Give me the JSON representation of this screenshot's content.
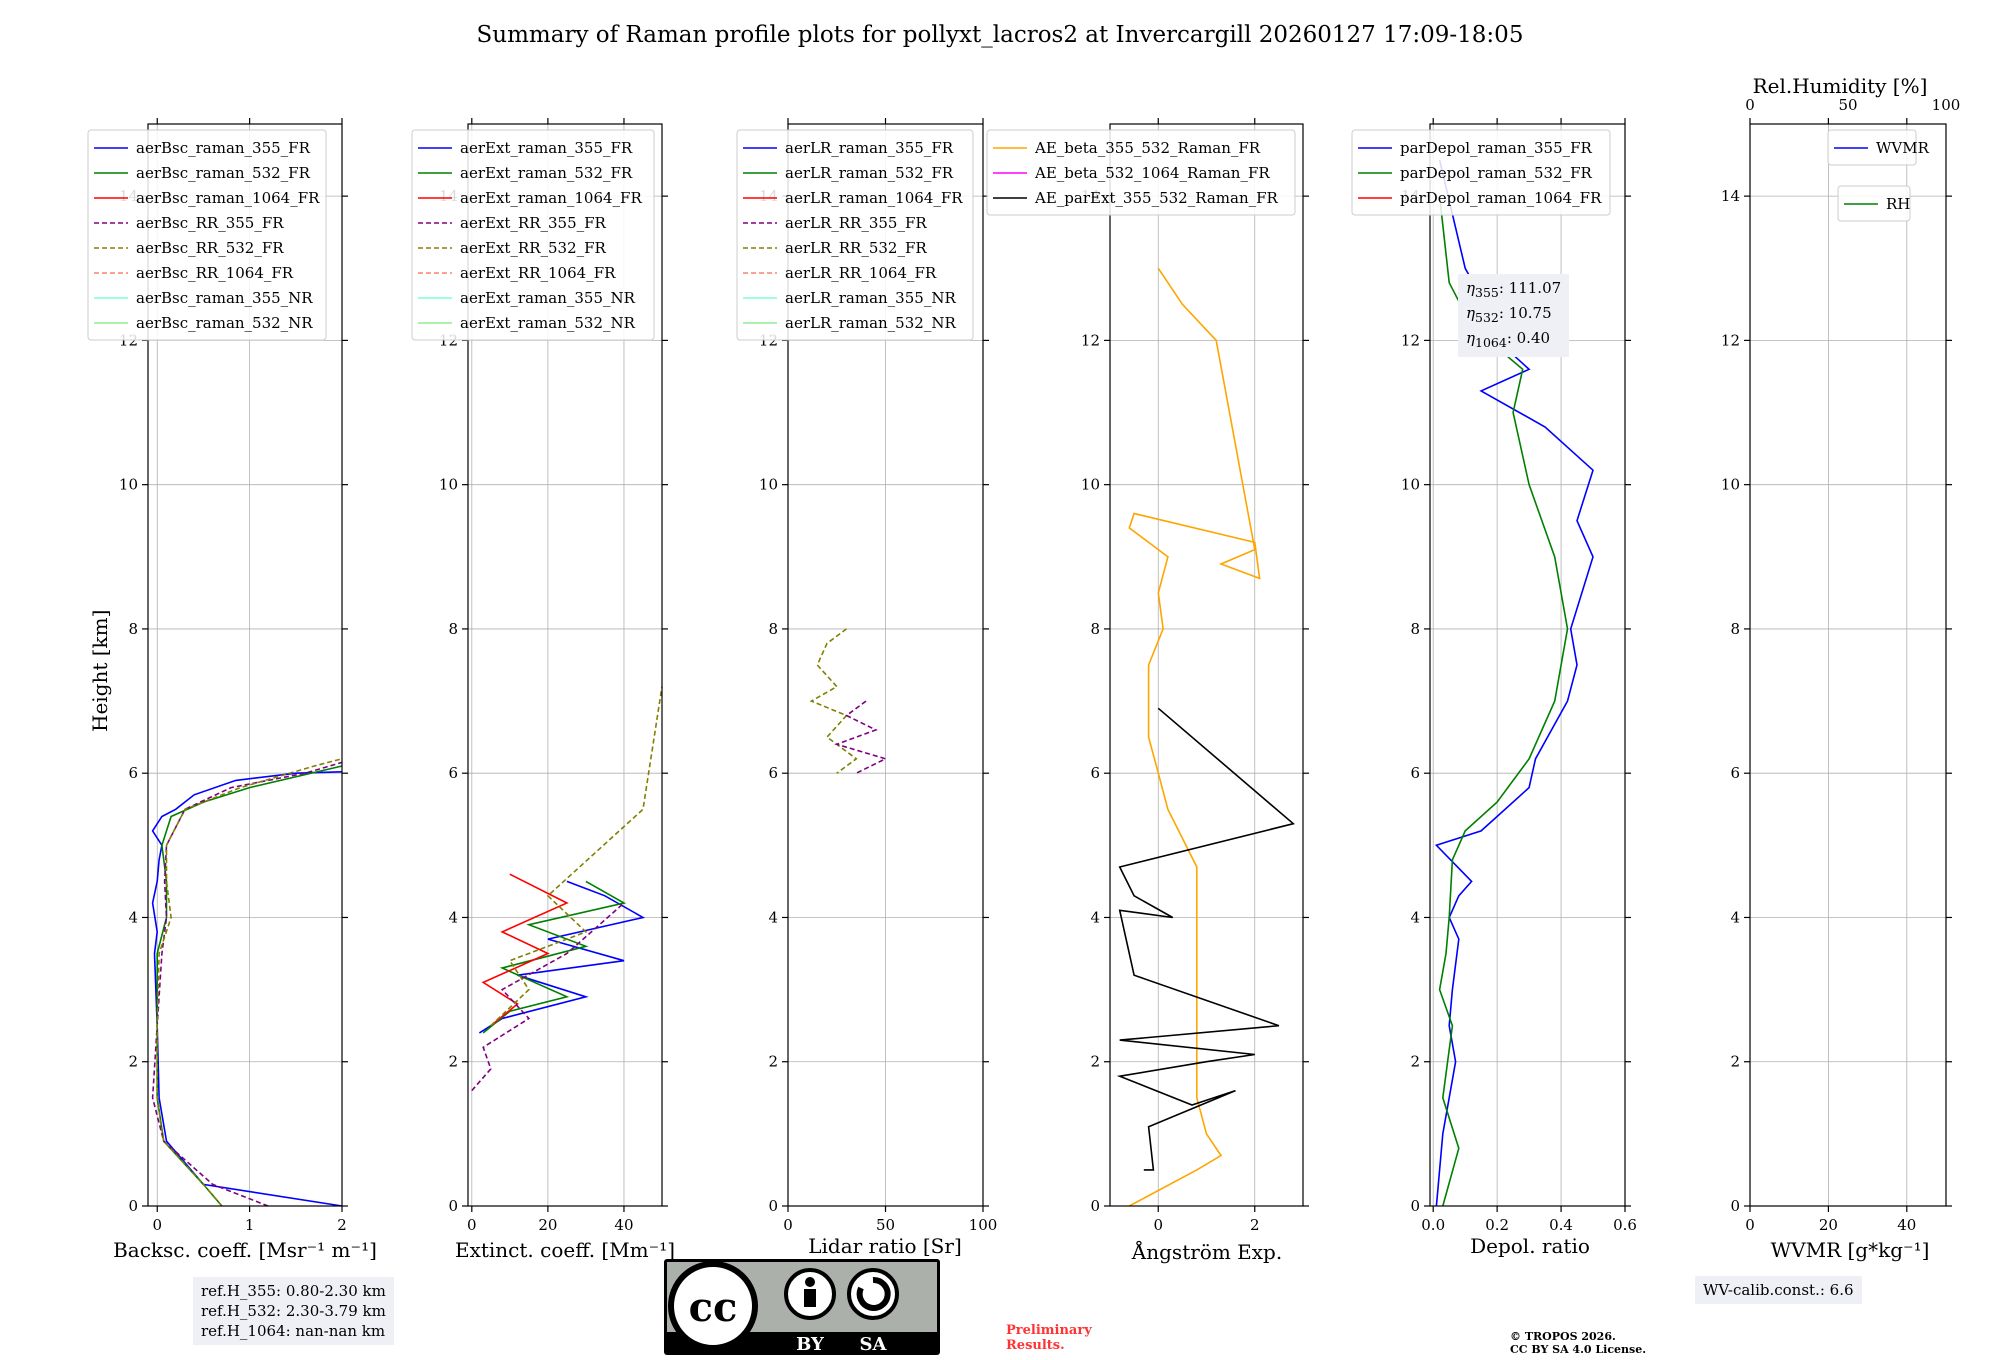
{
  "title": "Summary of Raman profile plots for pollyxt_lacros2 at Invercargill 20260127 17:09-18:05",
  "ylabel": "Height [km]",
  "yticks": [
    "0",
    "2",
    "4",
    "6",
    "8",
    "10",
    "12",
    "14"
  ],
  "ylim": [
    0,
    15
  ],
  "panels": [
    {
      "id": "bsc",
      "xlabel": "Backsc. coeff. [Msr⁻¹ m⁻¹]",
      "xlim": [
        -0.1,
        2
      ],
      "xticks": [
        0,
        1,
        2
      ],
      "xticklabels": [
        "0",
        "1",
        "2"
      ],
      "legend": [
        {
          "label": "aerBsc_raman_355_FR",
          "color": "#0000ff",
          "dash": false
        },
        {
          "label": "aerBsc_raman_532_FR",
          "color": "#008000",
          "dash": false
        },
        {
          "label": "aerBsc_raman_1064_FR",
          "color": "#ff0000",
          "dash": false
        },
        {
          "label": "aerBsc_RR_355_FR",
          "color": "#800080",
          "dash": true
        },
        {
          "label": "aerBsc_RR_532_FR",
          "color": "#808000",
          "dash": true
        },
        {
          "label": "aerBsc_RR_1064_FR",
          "color": "#fa8072",
          "dash": true
        },
        {
          "label": "aerBsc_raman_355_NR",
          "color": "#7fffd4",
          "dash": false
        },
        {
          "label": "aerBsc_raman_532_NR",
          "color": "#90ee90",
          "dash": false
        }
      ]
    },
    {
      "id": "ext",
      "xlabel": "Extinct. coeff. [Mm⁻¹]",
      "xlim": [
        -1,
        50
      ],
      "xticks": [
        0,
        20,
        40
      ],
      "xticklabels": [
        "0",
        "20",
        "40"
      ],
      "legend": [
        {
          "label": "aerExt_raman_355_FR",
          "color": "#0000ff",
          "dash": false
        },
        {
          "label": "aerExt_raman_532_FR",
          "color": "#008000",
          "dash": false
        },
        {
          "label": "aerExt_raman_1064_FR",
          "color": "#ff0000",
          "dash": false
        },
        {
          "label": "aerExt_RR_355_FR",
          "color": "#800080",
          "dash": true
        },
        {
          "label": "aerExt_RR_532_FR",
          "color": "#808000",
          "dash": true
        },
        {
          "label": "aerExt_RR_1064_FR",
          "color": "#fa8072",
          "dash": true
        },
        {
          "label": "aerExt_raman_355_NR",
          "color": "#7fffd4",
          "dash": false
        },
        {
          "label": "aerExt_raman_532_NR",
          "color": "#90ee90",
          "dash": false
        }
      ]
    },
    {
      "id": "lr",
      "xlabel": "Lidar ratio [Sr]",
      "xlim": [
        0,
        100
      ],
      "xticks": [
        0,
        50,
        100
      ],
      "xticklabels": [
        "0",
        "50",
        "100"
      ],
      "legend": [
        {
          "label": "aerLR_raman_355_FR",
          "color": "#0000ff",
          "dash": false
        },
        {
          "label": "aerLR_raman_532_FR",
          "color": "#008000",
          "dash": false
        },
        {
          "label": "aerLR_raman_1064_FR",
          "color": "#ff0000",
          "dash": false
        },
        {
          "label": "aerLR_RR_355_FR",
          "color": "#800080",
          "dash": true
        },
        {
          "label": "aerLR_RR_532_FR",
          "color": "#808000",
          "dash": true
        },
        {
          "label": "aerLR_RR_1064_FR",
          "color": "#fa8072",
          "dash": true
        },
        {
          "label": "aerLR_raman_355_NR",
          "color": "#7fffd4",
          "dash": false
        },
        {
          "label": "aerLR_raman_532_NR",
          "color": "#90ee90",
          "dash": false
        }
      ]
    },
    {
      "id": "ae",
      "xlabel": "Ångström Exp.",
      "xlim": [
        -1,
        3
      ],
      "xticks": [
        0,
        2
      ],
      "xticklabels": [
        "0",
        "2"
      ],
      "legend": [
        {
          "label": "AE_beta_355_532_Raman_FR",
          "color": "#ffa500",
          "dash": false
        },
        {
          "label": "AE_beta_532_1064_Raman_FR",
          "color": "#ff00ff",
          "dash": false
        },
        {
          "label": "AE_parExt_355_532_Raman_FR",
          "color": "#000000",
          "dash": false
        }
      ]
    },
    {
      "id": "depol",
      "xlabel": "Depol. ratio",
      "xlim": [
        -0.01,
        0.6
      ],
      "xticks": [
        0.0,
        0.2,
        0.4,
        0.6
      ],
      "xticklabels": [
        "0.0",
        "0.2",
        "0.4",
        "0.6"
      ],
      "legend": [
        {
          "label": "parDepol_raman_355_FR",
          "color": "#0000ff",
          "dash": false
        },
        {
          "label": "parDepol_raman_532_FR",
          "color": "#008000",
          "dash": false
        },
        {
          "label": "parDepol_raman_1064_FR",
          "color": "#ff0000",
          "dash": false
        }
      ]
    },
    {
      "id": "wv",
      "xlabel": "WVMR [g*kg⁻¹]",
      "xlim": [
        0,
        50
      ],
      "xticks": [
        0,
        20,
        40
      ],
      "xticklabels": [
        "0",
        "20",
        "40"
      ],
      "toplabel": "Rel.Humidity [%]",
      "toplim": [
        0,
        100
      ],
      "topticks": [
        0,
        50,
        100
      ],
      "topticklabels": [
        "0",
        "50",
        "100"
      ],
      "legend": [
        {
          "label": "WVMR",
          "color": "#0000ff",
          "dash": false
        }
      ],
      "legend2": [
        {
          "label": "RH",
          "color": "#008000",
          "dash": false
        }
      ]
    }
  ],
  "eta": {
    "l1": "355",
    "v1": ": 111.07",
    "l2": "532",
    "v2": ": 10.75",
    "l3": "1064",
    "v3": ": 0.40"
  },
  "refh": {
    "l1": "ref.H_355: 0.80-2.30 km",
    "l2": "ref.H_532: 2.30-3.79 km",
    "l3": "ref.H_1064: nan-nan km"
  },
  "wv_calib": "WV-calib.const.: 6.6",
  "preliminary": {
    "l1": "Preliminary",
    "l2": "Results."
  },
  "copyright": {
    "l1": "© TROPOS 2026.",
    "l2": "CC BY SA 4.0 License."
  },
  "license_badge": {
    "cc": "cc",
    "by": "BY",
    "sa": "SA"
  },
  "chart_data": [
    {
      "type": "line",
      "panel": "bsc",
      "title": "",
      "xlabel": "Backsc. coeff. [Msr⁻¹ m⁻¹]",
      "ylabel": "Height [km]",
      "xlim": [
        -0.1,
        2
      ],
      "ylim": [
        0,
        15
      ],
      "series": [
        {
          "name": "aerBsc_raman_355_FR",
          "x": [
            2.0,
            0.5,
            0.1,
            0.02,
            0.0,
            -0.03,
            0.0,
            -0.05,
            0.0,
            0.02,
            0.05,
            -0.05,
            0.05,
            0.2,
            0.4,
            0.85,
            1.5,
            2.0
          ],
          "y": [
            0,
            0.3,
            0.9,
            1.5,
            2.5,
            3.5,
            3.8,
            4.2,
            4.5,
            4.8,
            5.0,
            5.2,
            5.4,
            5.5,
            5.7,
            5.9,
            6.0,
            6.02
          ]
        },
        {
          "name": "aerBsc_raman_532_FR",
          "x": [
            0.7,
            0.5,
            0.07,
            0.0,
            0.0,
            0.0,
            0.1,
            0.1,
            0.05,
            0.15,
            0.5,
            1.0,
            2.0
          ],
          "y": [
            0,
            0.3,
            0.9,
            1.5,
            2.5,
            3.5,
            4.0,
            4.5,
            5.0,
            5.4,
            5.6,
            5.8,
            6.1
          ]
        },
        {
          "name": "aerBsc_RR_355_FR",
          "x": [
            1.2,
            0.6,
            0.07,
            -0.05,
            0.0,
            0.05,
            0.1,
            0.08,
            0.1,
            0.3,
            0.8,
            1.6,
            2.0
          ],
          "y": [
            0,
            0.3,
            0.9,
            1.5,
            2.5,
            3.5,
            4.0,
            4.5,
            5.0,
            5.5,
            5.8,
            6.0,
            6.15
          ]
        },
        {
          "name": "aerBsc_RR_532_FR",
          "x": [
            0.7,
            0.5,
            0.07,
            0.0,
            0.0,
            0.02,
            0.15,
            0.1,
            0.1,
            0.3,
            0.9,
            1.7,
            2.0
          ],
          "y": [
            0,
            0.3,
            0.9,
            1.5,
            2.5,
            3.5,
            4.0,
            4.5,
            5.0,
            5.5,
            5.8,
            6.1,
            6.2
          ]
        }
      ]
    },
    {
      "type": "line",
      "panel": "ext",
      "title": "",
      "xlabel": "Extinct. coeff. [Mm⁻¹]",
      "ylabel": "Height [km]",
      "xlim": [
        -1,
        50
      ],
      "ylim": [
        0,
        15
      ],
      "series": [
        {
          "name": "aerExt_raman_355_FR",
          "x": [
            2,
            8,
            30,
            12,
            40,
            20,
            45,
            35,
            25
          ],
          "y": [
            2.4,
            2.6,
            2.9,
            3.2,
            3.4,
            3.7,
            4.0,
            4.3,
            4.5
          ]
        },
        {
          "name": "aerExt_raman_532_FR",
          "x": [
            3,
            10,
            25,
            8,
            30,
            15,
            40,
            30
          ],
          "y": [
            2.4,
            2.7,
            2.9,
            3.3,
            3.6,
            3.9,
            4.2,
            4.5
          ]
        },
        {
          "name": "aerExt_raman_1064_FR",
          "x": [
            5,
            12,
            3,
            20,
            8,
            25,
            10
          ],
          "y": [
            2.5,
            2.8,
            3.1,
            3.5,
            3.8,
            4.2,
            4.6
          ]
        },
        {
          "name": "aerExt_RR_355_FR",
          "x": [
            0,
            5,
            3,
            15,
            8,
            25,
            40
          ],
          "y": [
            1.6,
            1.9,
            2.2,
            2.6,
            3.0,
            3.5,
            4.2
          ]
        },
        {
          "name": "aerExt_RR_532_FR",
          "x": [
            5,
            15,
            10,
            30,
            20,
            45,
            50
          ],
          "y": [
            2.5,
            3.0,
            3.4,
            3.8,
            4.3,
            5.5,
            7.2
          ]
        }
      ]
    },
    {
      "type": "line",
      "panel": "lr",
      "title": "",
      "xlabel": "Lidar ratio [Sr]",
      "ylabel": "Height [km]",
      "xlim": [
        0,
        100
      ],
      "ylim": [
        0,
        15
      ],
      "series": [
        {
          "name": "aerLR_RR_532_FR",
          "x": [
            30,
            20,
            15,
            25,
            12,
            30,
            20,
            35,
            25
          ],
          "y": [
            8.0,
            7.8,
            7.5,
            7.2,
            7.0,
            6.8,
            6.5,
            6.2,
            6.0
          ]
        },
        {
          "name": "aerLR_RR_355_FR",
          "x": [
            40,
            30,
            45,
            25,
            50,
            35
          ],
          "y": [
            7.0,
            6.8,
            6.6,
            6.4,
            6.2,
            6.0
          ]
        }
      ]
    },
    {
      "type": "line",
      "panel": "ae",
      "title": "",
      "xlabel": "Ångström Exp.",
      "ylabel": "Height [km]",
      "xlim": [
        -1,
        3
      ],
      "ylim": [
        0,
        15
      ],
      "series": [
        {
          "name": "AE_beta_355_532_Raman_FR",
          "x": [
            -0.6,
            0.8,
            1.3,
            1.0,
            0.8,
            0.8,
            0.2,
            0.0,
            -0.2,
            -0.2,
            0.1,
            0.0,
            0.2,
            -0.6,
            -0.5,
            2.0,
            2.1,
            1.3,
            2.0,
            1.2,
            0.5,
            0.0
          ],
          "y": [
            0,
            0.5,
            0.7,
            1.0,
            1.5,
            4.7,
            5.5,
            6.0,
            6.5,
            7.5,
            8.0,
            8.5,
            9.0,
            9.4,
            9.6,
            9.2,
            8.7,
            8.9,
            9.1,
            12.0,
            12.5,
            13.0
          ]
        },
        {
          "name": "AE_parExt_355_532_Raman_FR",
          "x": [
            -0.3,
            -0.1,
            -0.2,
            1.6,
            0.7,
            -0.8,
            1.0,
            2.0,
            -0.8,
            2.5,
            -0.5,
            -0.8,
            0.3,
            -0.5,
            -0.8,
            2.8,
            0.0
          ],
          "y": [
            0.5,
            0.5,
            1.1,
            1.6,
            1.4,
            1.8,
            2.0,
            2.1,
            2.3,
            2.5,
            3.2,
            4.1,
            4.0,
            4.3,
            4.7,
            5.3,
            6.9
          ]
        }
      ]
    },
    {
      "type": "line",
      "panel": "depol",
      "title": "",
      "xlabel": "Depol. ratio",
      "ylabel": "Height [km]",
      "xlim": [
        -0.01,
        0.6
      ],
      "ylim": [
        0,
        15
      ],
      "series": [
        {
          "name": "parDepol_raman_355_FR",
          "x": [
            0.01,
            0.03,
            0.05,
            0.07,
            0.05,
            0.06,
            0.08,
            0.05,
            0.08,
            0.12,
            0.01,
            0.15,
            0.2,
            0.3,
            0.32,
            0.42,
            0.45,
            0.43,
            0.5,
            0.45,
            0.5,
            0.35,
            0.15,
            0.3,
            0.25,
            0.1,
            0.02
          ],
          "y": [
            0,
            1.0,
            1.5,
            2.0,
            2.5,
            3.0,
            3.7,
            4.0,
            4.3,
            4.5,
            5.0,
            5.2,
            5.4,
            5.8,
            6.2,
            7.0,
            7.5,
            8.0,
            9.0,
            9.5,
            10.2,
            10.8,
            11.3,
            11.6,
            11.8,
            13.0,
            14.5
          ]
        },
        {
          "name": "parDepol_raman_532_FR",
          "x": [
            0.03,
            0.08,
            0.03,
            0.06,
            0.02,
            0.04,
            0.05,
            0.06,
            0.1,
            0.2,
            0.3,
            0.38,
            0.42,
            0.38,
            0.3,
            0.25,
            0.28,
            0.2,
            0.12,
            0.05,
            0.02
          ],
          "y": [
            0,
            0.8,
            1.5,
            2.5,
            3.0,
            3.5,
            4.0,
            4.8,
            5.2,
            5.6,
            6.2,
            7.0,
            8.0,
            9.0,
            10.0,
            11.0,
            11.6,
            11.9,
            12.2,
            12.8,
            14.0
          ]
        }
      ]
    },
    {
      "type": "line",
      "panel": "wv",
      "title": "",
      "xlabel": "WVMR [g*kg⁻¹]",
      "ylabel": "Height [km]",
      "xlim": [
        0,
        50
      ],
      "ylim": [
        0,
        15
      ],
      "series": []
    }
  ]
}
